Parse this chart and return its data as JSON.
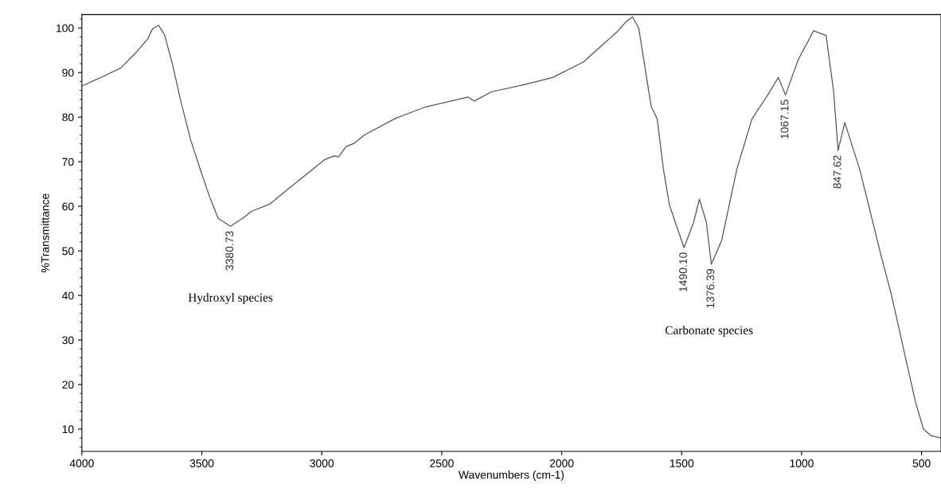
{
  "chart_data": {
    "type": "line",
    "xlabel": "Wavenumbers (cm-1)",
    "ylabel": "%Transmittance",
    "xlim": [
      4000,
      419
    ],
    "xticks": [
      4000,
      3500,
      3000,
      2500,
      2000,
      1500,
      1000,
      500
    ],
    "ylim": [
      5,
      103
    ],
    "yticks": [
      10,
      20,
      30,
      40,
      50,
      60,
      70,
      80,
      90,
      100
    ],
    "grid": false,
    "legend": false,
    "marker": "none",
    "line_style": "solid",
    "series": [
      {
        "color": "#555555",
        "x": [
          4000,
          3929,
          3839,
          3776,
          3725,
          3706,
          3680,
          3655,
          3623,
          3585,
          3547,
          3508,
          3470,
          3432,
          3381,
          3330,
          3292,
          3216,
          3140,
          3063,
          2987,
          2949,
          2929,
          2899,
          2866,
          2822,
          2694,
          2567,
          2390,
          2364,
          2344,
          2292,
          2164,
          2038,
          1909,
          1768,
          1730,
          1705,
          1679,
          1653,
          1627,
          1602,
          1576,
          1551,
          1513,
          1490,
          1450,
          1426,
          1397,
          1376,
          1333,
          1270,
          1207,
          1142,
          1097,
          1067,
          1014,
          950,
          898,
          867,
          848,
          820,
          758,
          668,
          625,
          575,
          525,
          492,
          459,
          419
        ],
        "values": [
          87.0,
          88.7,
          91.0,
          94.4,
          97.6,
          99.8,
          100.6,
          98.4,
          92.0,
          83.0,
          75.0,
          68.5,
          62.5,
          57.3,
          55.5,
          57.3,
          58.9,
          60.5,
          63.9,
          67.2,
          70.5,
          71.3,
          71.1,
          73.4,
          74.1,
          76.0,
          79.7,
          82.3,
          84.5,
          83.6,
          84.2,
          85.7,
          87.2,
          88.9,
          92.4,
          99.2,
          101.5,
          102.5,
          100.0,
          91.2,
          82.4,
          79.6,
          68.3,
          60.3,
          54.3,
          50.7,
          56.4,
          61.6,
          56.4,
          47.0,
          52.4,
          68.3,
          79.6,
          84.9,
          88.9,
          85.0,
          92.9,
          99.4,
          98.3,
          86.0,
          72.5,
          78.8,
          68.3,
          48.8,
          40,
          28,
          16,
          10,
          8.5,
          8
        ]
      }
    ],
    "annotations": [
      {
        "text": "3380.73",
        "x": 3380.73,
        "y": 55.5
      },
      {
        "text": "1490.10",
        "x": 1490.1,
        "y": 50.7
      },
      {
        "text": "1376.39",
        "x": 1376.39,
        "y": 47.0
      },
      {
        "text": "1067.15",
        "x": 1067.15,
        "y": 85.0
      },
      {
        "text": "847.62",
        "x": 847.62,
        "y": 72.5
      },
      "Hydroxyl species",
      "Carbonate species"
    ]
  }
}
